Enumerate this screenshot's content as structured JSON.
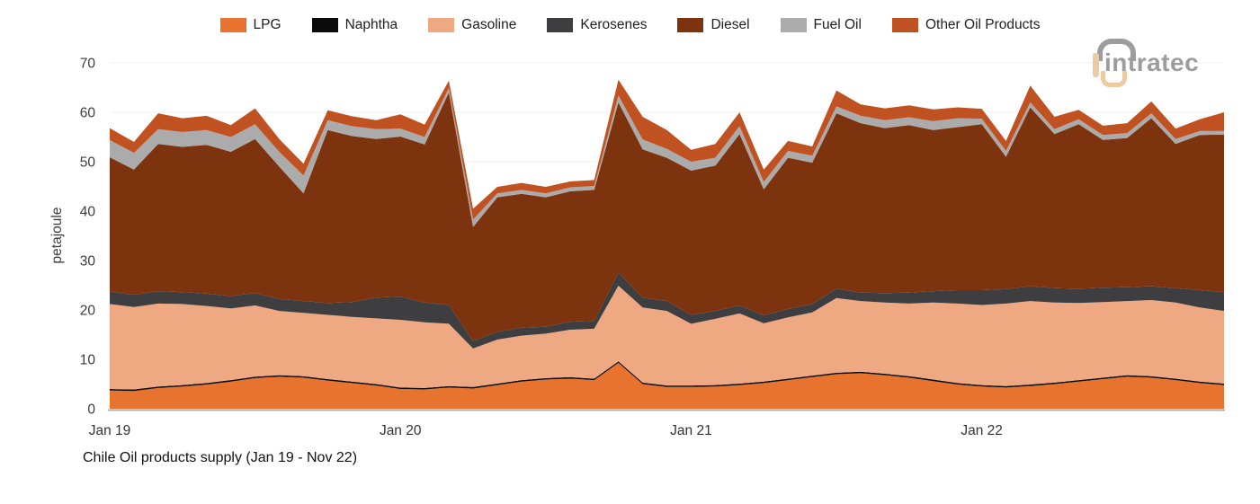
{
  "logo": {
    "text": "intratec"
  },
  "chart_data": {
    "type": "area",
    "stacked": true,
    "title": "Chile Oil products supply (Jan 19 - Nov 22)",
    "xlabel": "",
    "ylabel": "petajoule",
    "ylim": [
      0,
      70
    ],
    "yticks": [
      0,
      10,
      20,
      30,
      40,
      50,
      60,
      70
    ],
    "grid": "faint-horizontal",
    "legend_position": "top-center",
    "axis_line_color": "#b3b3b3",
    "gridline_color": "#f2f2f2",
    "tick_label_color": "#3c3c3c",
    "x": [
      "Jan 19",
      "Feb 19",
      "Mar 19",
      "Apr 19",
      "May 19",
      "Jun 19",
      "Jul 19",
      "Aug 19",
      "Sep 19",
      "Oct 19",
      "Nov 19",
      "Dec 19",
      "Jan 20",
      "Feb 20",
      "Mar 20",
      "Apr 20",
      "May 20",
      "Jun 20",
      "Jul 20",
      "Aug 20",
      "Sep 20",
      "Oct 20",
      "Nov 20",
      "Dec 20",
      "Jan 21",
      "Feb 21",
      "Mar 21",
      "Apr 21",
      "May 21",
      "Jun 21",
      "Jul 21",
      "Aug 21",
      "Sep 21",
      "Oct 21",
      "Nov 21",
      "Dec 21",
      "Jan 22",
      "Feb 22",
      "Mar 22",
      "Apr 22",
      "May 22",
      "Jun 22",
      "Jul 22",
      "Aug 22",
      "Sep 22",
      "Oct 22",
      "Nov 22"
    ],
    "xticks": [
      {
        "index": 0,
        "label": "Jan 19"
      },
      {
        "index": 12,
        "label": "Jan 20"
      },
      {
        "index": 24,
        "label": "Jan 21"
      },
      {
        "index": 36,
        "label": "Jan 22"
      }
    ],
    "series": [
      {
        "name": "LPG",
        "color": "#E8732E",
        "values": [
          3.7,
          3.6,
          4.2,
          4.5,
          4.9,
          5.5,
          6.2,
          6.5,
          6.3,
          5.7,
          5.2,
          4.7,
          4.0,
          3.9,
          4.3,
          4.1,
          4.8,
          5.5,
          5.9,
          6.1,
          5.8,
          9.3,
          5.0,
          4.4,
          4.4,
          4.5,
          4.8,
          5.2,
          5.8,
          6.4,
          7.0,
          7.2,
          6.8,
          6.3,
          5.6,
          4.9,
          4.5,
          4.3,
          4.6,
          5.0,
          5.5,
          6.0,
          6.5,
          6.3,
          5.8,
          5.2,
          4.8
        ]
      },
      {
        "name": "Naphtha",
        "color": "#0B0B0B",
        "values": [
          0.3,
          0.3,
          0.3,
          0.3,
          0.3,
          0.3,
          0.3,
          0.3,
          0.3,
          0.3,
          0.3,
          0.3,
          0.3,
          0.3,
          0.3,
          0.3,
          0.3,
          0.3,
          0.3,
          0.3,
          0.3,
          0.3,
          0.3,
          0.3,
          0.3,
          0.3,
          0.3,
          0.3,
          0.3,
          0.3,
          0.3,
          0.3,
          0.3,
          0.3,
          0.3,
          0.3,
          0.3,
          0.3,
          0.3,
          0.3,
          0.3,
          0.3,
          0.3,
          0.3,
          0.3,
          0.3,
          0.3
        ]
      },
      {
        "name": "Gasoline",
        "color": "#EFA982",
        "values": [
          17.2,
          16.7,
          16.8,
          16.4,
          15.6,
          14.5,
          14.4,
          13.0,
          12.8,
          13.0,
          13.1,
          13.3,
          13.7,
          13.3,
          12.6,
          7.8,
          8.9,
          9.0,
          9.0,
          9.6,
          10.1,
          15.3,
          15.2,
          15.1,
          12.5,
          13.4,
          14.2,
          11.8,
          12.4,
          12.8,
          15.1,
          14.3,
          14.4,
          14.7,
          15.6,
          16.1,
          16.2,
          16.7,
          16.9,
          16.2,
          15.6,
          15.3,
          15.0,
          15.4,
          15.4,
          15.0,
          14.7
        ]
      },
      {
        "name": "Kerosenes",
        "color": "#3E3E41",
        "values": [
          2.5,
          2.5,
          2.5,
          2.4,
          2.5,
          2.5,
          2.5,
          2.4,
          2.4,
          2.4,
          3.0,
          4.2,
          4.7,
          4.0,
          3.8,
          1.5,
          1.6,
          1.6,
          1.4,
          1.6,
          1.6,
          2.7,
          2.0,
          2.0,
          1.8,
          1.6,
          1.6,
          1.6,
          1.7,
          1.7,
          1.9,
          1.7,
          1.9,
          2.2,
          2.3,
          2.7,
          3.0,
          2.9,
          3.0,
          2.9,
          2.9,
          2.9,
          2.8,
          2.8,
          2.9,
          3.5,
          3.8
        ]
      },
      {
        "name": "Diesel",
        "color": "#7D330E",
        "values": [
          27.2,
          25.3,
          29.8,
          29.4,
          30.1,
          29.2,
          31.2,
          26.8,
          21.8,
          35.0,
          33.6,
          32.1,
          32.4,
          32.0,
          43.0,
          23.1,
          27.2,
          27.1,
          26.2,
          26.4,
          26.5,
          34.4,
          30.0,
          29.0,
          29.2,
          29.4,
          34.7,
          25.5,
          30.6,
          28.6,
          35.5,
          34.3,
          33.4,
          33.9,
          32.6,
          33.0,
          33.6,
          26.8,
          36.2,
          31.2,
          33.3,
          29.9,
          30.2,
          34.0,
          29.2,
          31.4,
          31.9
        ]
      },
      {
        "name": "Fuel Oil",
        "color": "#ACABAC",
        "values": [
          3.5,
          3.4,
          3.0,
          3.0,
          3.0,
          3.0,
          3.0,
          3.0,
          3.6,
          2.0,
          2.0,
          2.0,
          1.6,
          1.5,
          0.9,
          1.5,
          0.8,
          0.8,
          0.8,
          0.8,
          0.8,
          1.4,
          2.0,
          1.8,
          1.8,
          1.6,
          1.6,
          1.5,
          1.4,
          1.4,
          1.4,
          1.5,
          1.6,
          1.6,
          1.8,
          1.8,
          1.1,
          1.2,
          1.0,
          1.0,
          1.0,
          1.0,
          1.0,
          1.0,
          1.0,
          0.8,
          0.7
        ]
      },
      {
        "name": "Other Oil Products",
        "color": "#C05120",
        "values": [
          2.4,
          2.2,
          3.2,
          2.8,
          2.9,
          2.4,
          3.2,
          2.6,
          2.4,
          2.0,
          2.0,
          1.8,
          2.9,
          2.5,
          1.5,
          2.2,
          1.3,
          1.4,
          1.3,
          1.2,
          1.2,
          3.2,
          4.6,
          3.8,
          2.4,
          2.8,
          2.8,
          2.5,
          2.0,
          1.9,
          3.2,
          2.3,
          2.4,
          2.4,
          2.4,
          2.2,
          2.0,
          2.0,
          3.4,
          2.5,
          1.9,
          1.9,
          2.0,
          2.4,
          2.1,
          2.4,
          3.8
        ]
      }
    ]
  }
}
